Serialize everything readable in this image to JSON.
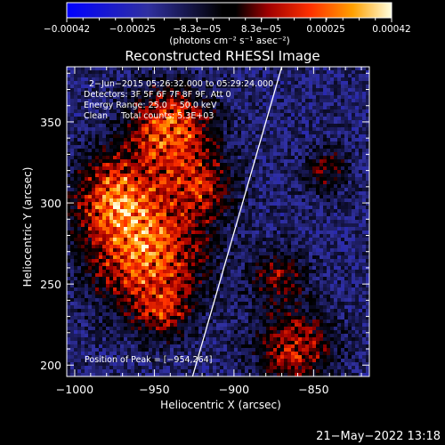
{
  "chart_data": {
    "type": "heatmap",
    "title": "Reconstructed RHESSI Image",
    "xlabel": "Heliocentric X (arcsec)",
    "ylabel": "Heliocentric Y (arcsec)",
    "xlim": [
      -1005,
      -815
    ],
    "ylim": [
      193,
      384
    ],
    "xticks": [
      -1000,
      -950,
      -900,
      -850
    ],
    "xtick_labels": [
      "−1000",
      "−950",
      "−900",
      "−850"
    ],
    "yticks": [
      200,
      250,
      300,
      350
    ],
    "ytick_labels": [
      "200",
      "250",
      "300",
      "350"
    ],
    "colorbar": {
      "range": [
        -0.00042,
        0.00042
      ],
      "ticks": [
        -0.00042,
        -0.00025,
        -8.3e-05,
        8.3e-05,
        0.00025,
        0.00042
      ],
      "tick_labels": [
        "−0.00042",
        "−0.00025",
        "−8.3e−05",
        "8.3e−05",
        "0.00025",
        "0.00042"
      ],
      "units_label": "(photons cm⁻² s⁻¹ asec⁻²)"
    },
    "annotations": [
      "2−Jun−2015 05:26:32.000 to 05:29:24.000",
      "Detectors: 3F 5F 6F 7F 8F 9F, Att 0",
      "Energy Range: 25.0 − 50.0 keV",
      "Clean     Total counts: 5.3E+03"
    ],
    "peak_label": "Position of Peak = [−954,264]",
    "peak_position": [
      -954,
      264
    ],
    "limb_line": [
      [
        -926,
        193
      ],
      [
        -870,
        384
      ]
    ],
    "hotspots": [
      {
        "x": -940,
        "y": 345,
        "sigma": 18,
        "amp": 0.95
      },
      {
        "x": -955,
        "y": 270,
        "sigma": 25,
        "amp": 1.0
      },
      {
        "x": -975,
        "y": 305,
        "sigma": 18,
        "amp": 0.8
      },
      {
        "x": -920,
        "y": 310,
        "sigma": 14,
        "amp": 0.6
      },
      {
        "x": -862,
        "y": 210,
        "sigma": 17,
        "amp": 0.7
      },
      {
        "x": -872,
        "y": 255,
        "sigma": 12,
        "amp": 0.5
      },
      {
        "x": -842,
        "y": 320,
        "sigma": 10,
        "amp": 0.45
      },
      {
        "x": -945,
        "y": 232,
        "sigma": 12,
        "amp": 0.5
      }
    ]
  },
  "footer": {
    "timestamp": "21−May−2022 13:18"
  }
}
